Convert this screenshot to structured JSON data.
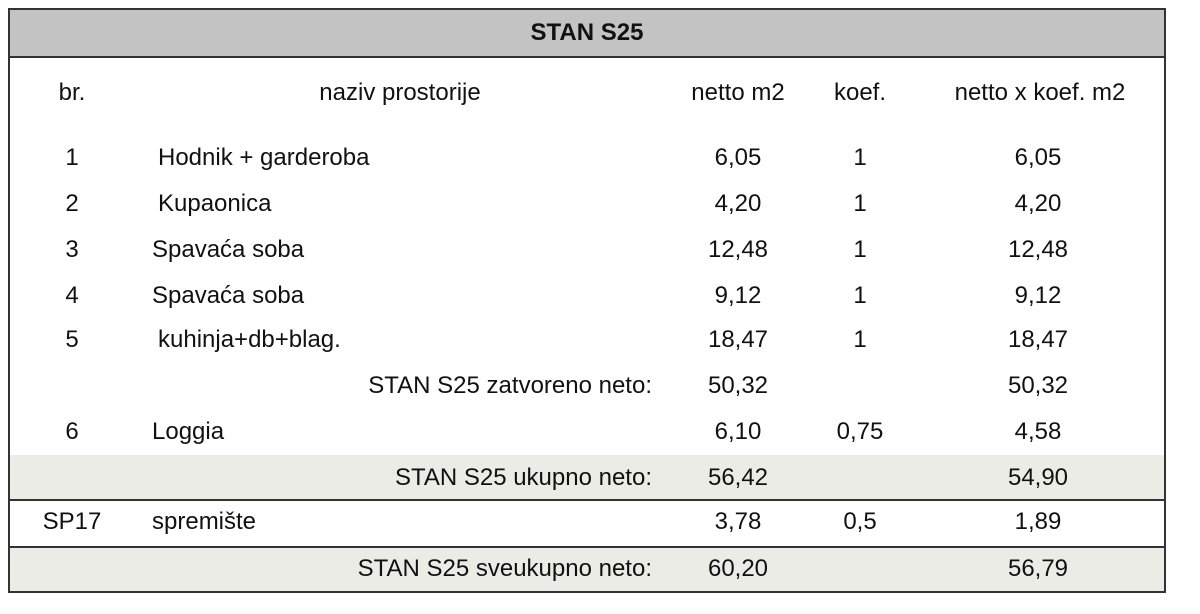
{
  "title": "STAN S25",
  "headers": [
    "br.",
    "naziv prostorije",
    "netto m2",
    "koef.",
    "netto x koef. m2"
  ],
  "rows": [
    {
      "br": "1",
      "naziv": "Hodnik + garderoba",
      "netto": "6,05",
      "koef": "1",
      "netto_koef": "6,05"
    },
    {
      "br": "2",
      "naziv": "Kupaonica",
      "netto": "4,20",
      "koef": "1",
      "netto_koef": "4,20"
    },
    {
      "br": "3",
      "naziv": "Spavaća soba",
      "netto": "12,48",
      "koef": "1",
      "netto_koef": "12,48"
    },
    {
      "br": "4",
      "naziv": "Spavaća soba",
      "netto": "9,12",
      "koef": "1",
      "netto_koef": "9,12"
    },
    {
      "br": "5",
      "naziv": "kuhinja+db+blag.",
      "netto": "18,47",
      "koef": "1",
      "netto_koef": "18,47"
    },
    {
      "label": "STAN S25 zatvoreno neto:",
      "netto": "50,32",
      "netto_koef": "50,32"
    },
    {
      "br": "6",
      "naziv": "Loggia",
      "netto": "6,10",
      "koef": "0,75",
      "netto_koef": "4,58"
    },
    {
      "label": "STAN S25 ukupno neto:",
      "netto": "56,42",
      "netto_koef": "54,90"
    },
    {
      "br": "SP17",
      "naziv": "spremište",
      "netto": "3,78",
      "koef": "0,5",
      "netto_koef": "1,89"
    },
    {
      "label": "STAN S25 sveukupno neto:",
      "netto": "60,20",
      "netto_koef": "56,79"
    }
  ]
}
